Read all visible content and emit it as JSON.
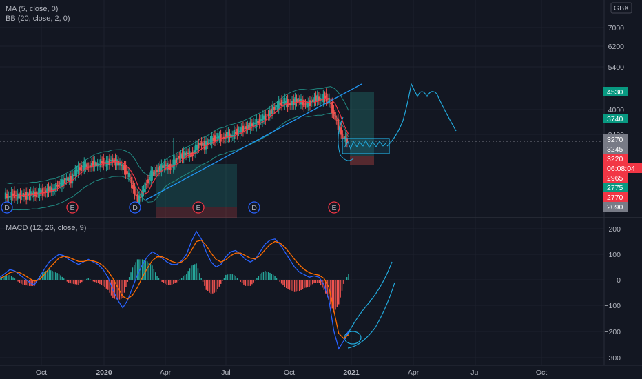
{
  "chart_data": [
    {
      "type": "candlestick",
      "title": "",
      "legend": [
        {
          "text": "MA (5, close, 0)"
        },
        {
          "text": "BB (20, close, 2, 0)"
        }
      ],
      "currency": "GBX",
      "scale": "log",
      "y_ticks": [
        "7000",
        "6200",
        "5400",
        "4000",
        "3400"
      ],
      "x_labels": [
        "Oct",
        "2020",
        "Apr",
        "Jul",
        "Oct",
        "2021",
        "Apr",
        "Jul",
        "Oct"
      ],
      "price_tags": [
        {
          "label": "4530",
          "bg": "#089981"
        },
        {
          "label": "3740",
          "bg": "#089981"
        },
        {
          "label": "3270",
          "bg": "#787b86"
        },
        {
          "label": "3245",
          "bg": "#787b86"
        },
        {
          "label": "3220",
          "bg": "#f23645"
        },
        {
          "label": "06:08:04",
          "bg": "#f23645"
        },
        {
          "label": "2965",
          "bg": "#f23645"
        },
        {
          "label": "2775",
          "bg": "#089981"
        },
        {
          "label": "2770",
          "bg": "#f23645"
        },
        {
          "label": "2090",
          "bg": "#787b86"
        }
      ],
      "event_markers": [
        {
          "letter": "D",
          "kind": "dividend"
        },
        {
          "letter": "E",
          "kind": "earnings"
        },
        {
          "letter": "D",
          "kind": "dividend"
        },
        {
          "letter": "E",
          "kind": "earnings"
        },
        {
          "letter": "D",
          "kind": "dividend"
        },
        {
          "letter": "E",
          "kind": "earnings"
        }
      ],
      "weekly_close_approx": [
        2250,
        2220,
        2270,
        2230,
        2260,
        2240,
        2290,
        2260,
        2310,
        2300,
        2350,
        2330,
        2420,
        2450,
        2520,
        2500,
        2650,
        2700,
        2760,
        2720,
        2800,
        2760,
        2830,
        2790,
        2860,
        2820,
        2770,
        2700,
        2560,
        2350,
        2150,
        2300,
        2450,
        2600,
        2650,
        2700,
        2760,
        2720,
        2800,
        2900,
        2950,
        3000,
        2950,
        3100,
        3200,
        3150,
        3250,
        3300,
        3350,
        3300,
        3400,
        3350,
        3450,
        3500,
        3550,
        3600,
        3650,
        3700,
        3800,
        3850,
        4000,
        4100,
        4200,
        4250,
        4150,
        4250,
        4300,
        4200,
        4150,
        4250,
        4350,
        4300,
        4400,
        4250,
        3900,
        3600,
        3350,
        3245
      ],
      "colors": {
        "up": "#26a69a",
        "down": "#ef5350",
        "ma": "#f23645",
        "bb": "#26a69a",
        "trend": "#2196f3",
        "drawing": "#22aadd"
      }
    },
    {
      "type": "line",
      "legend": [
        {
          "text": "MACD (12, 26, close, 9)"
        }
      ],
      "y_ticks": [
        "200",
        "100",
        "0",
        "−100",
        "−200",
        "−300"
      ],
      "ylim": [
        -320,
        220
      ],
      "series": [
        {
          "values": [
            10,
            25,
            40,
            35,
            20,
            5,
            -10,
            -20,
            10,
            40,
            70,
            85,
            100,
            95,
            80,
            70,
            60,
            70,
            80,
            70,
            60,
            40,
            10,
            -40,
            -80,
            -110,
            -80,
            -30,
            20,
            60,
            90,
            110,
            100,
            85,
            70,
            60,
            60,
            75,
            100,
            150,
            190,
            160,
            110,
            70,
            50,
            60,
            90,
            110,
            115,
            100,
            80,
            70,
            80,
            110,
            140,
            155,
            160,
            140,
            110,
            80,
            50,
            30,
            20,
            10,
            15,
            10,
            -20,
            -80,
            -200,
            -270,
            -240,
            -200
          ]
        },
        {
          "values": [
            5,
            15,
            28,
            32,
            28,
            18,
            5,
            -5,
            0,
            20,
            45,
            65,
            85,
            92,
            88,
            80,
            72,
            72,
            76,
            74,
            68,
            55,
            35,
            5,
            -30,
            -65,
            -75,
            -60,
            -30,
            10,
            45,
            75,
            90,
            90,
            82,
            72,
            66,
            70,
            85,
            115,
            150,
            155,
            135,
            105,
            80,
            70,
            78,
            95,
            105,
            105,
            95,
            85,
            82,
            95,
            118,
            138,
            150,
            145,
            128,
            105,
            80,
            58,
            40,
            28,
            22,
            18,
            5,
            -30,
            -120,
            -210,
            -230,
            -215
          ]
        }
      ],
      "colors": {
        "macd": "#2962ff",
        "signal": "#ff6d00",
        "hist_up": "#26a69a",
        "hist_down": "#ef5350"
      }
    }
  ]
}
